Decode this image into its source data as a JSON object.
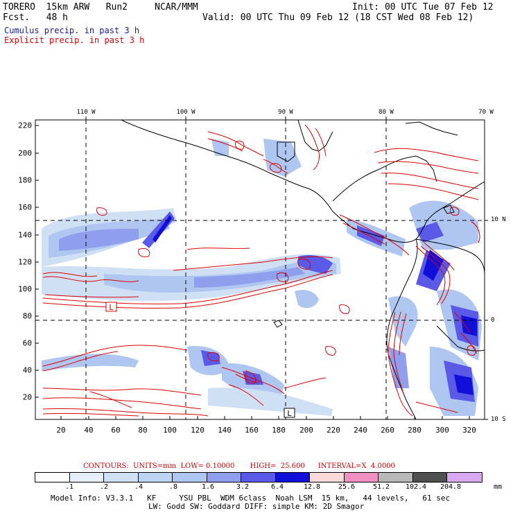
{
  "header": {
    "model": "TORERO  15km ARW   Run2     NCAR/MMM",
    "init": "Init: 00 UTC Tue 07 Feb 12",
    "fcst": "Fcst.   48 h",
    "valid": "Valid: 00 UTC Thu 09 Feb 12 (18 CST Wed 08 Feb 12)"
  },
  "legend": {
    "cumulus": "Cumulus precip. in past 3 h",
    "explicit": "Explicit precip. in past 3 h",
    "cumulus_color": "#1a1aa0",
    "explicit_color": "#e00000"
  },
  "map": {
    "lon_labels": [
      "110 W",
      "100 W",
      "90 W",
      "80 W",
      "70 W"
    ],
    "lat_labels": [
      "10 N",
      "0",
      "10 S"
    ],
    "y_ticks": [
      "220",
      "200",
      "180",
      "160",
      "140",
      "120",
      "100",
      "80",
      "60",
      "40",
      "20"
    ],
    "x_ticks": [
      "20",
      "40",
      "60",
      "80",
      "100",
      "120",
      "140",
      "160",
      "180",
      "200",
      "220",
      "240",
      "260",
      "280",
      "300",
      "320"
    ],
    "low_marker": "L"
  },
  "contours": {
    "text": "CONTOURS:  UNITS=mm  LOW= 0.10000       HIGH=  25.600      INTERVAL=X  4.0000"
  },
  "colorbar": {
    "labels": [
      ".1",
      ".2",
      ".4",
      ".8",
      "1.6",
      "3.2",
      "6.4",
      "12.8",
      "25.6",
      "51.2",
      "102.4",
      "204.8"
    ],
    "unit": "mm",
    "colors": [
      "#ffffff",
      "#e6eefa",
      "#cfe0f5",
      "#bcd4f2",
      "#aec6f0",
      "#8f9fee",
      "#5a5ae6",
      "#1010d8",
      "#f8d8d8",
      "#f090c0",
      "#b8b8b8",
      "#505050",
      "#d8a8f0"
    ]
  },
  "info": {
    "line1": "Model Info: V3.3.1   KF     YSU PBL  WDM 6class  Noah LSM  15 km,   44 levels,   61 sec",
    "line2": "LW: Godd SW: Goddard DIFF: simple KM: 2D Smagor"
  }
}
